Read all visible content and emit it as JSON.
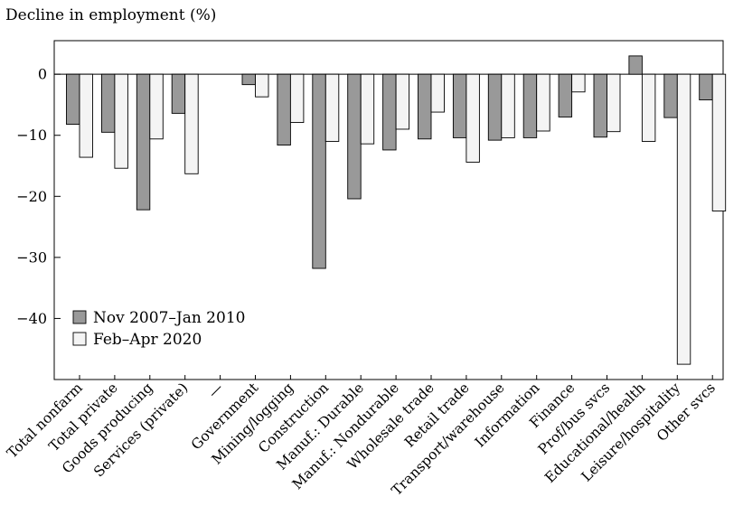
{
  "chart_data": {
    "type": "bar",
    "title": "",
    "ylabel": "Decline in employment (%)",
    "xlabel": "",
    "ylim": [
      -50,
      5.5
    ],
    "yticks": [
      0,
      -10,
      -20,
      -30,
      -40
    ],
    "ytick_labels": [
      "0",
      "−10",
      "−20",
      "−30",
      "−40"
    ],
    "grid": false,
    "legend_position": "bottom-left",
    "categories": [
      "Total nonfarm",
      "Total private",
      "Goods producing",
      "Services (private)",
      "—",
      "Government",
      "Mining/logging",
      "Construction",
      "Manuf.: Durable",
      "Manuf.: Nondurable",
      "Wholesale trade",
      "Retail trade",
      "Transport/warehouse",
      "Information",
      "Finance",
      "Prof/bus svcs",
      "Educational/health",
      "Leisure/hospitality",
      "Other svcs"
    ],
    "series": [
      {
        "name": "Nov 2007–Jan 2010",
        "color": "#999999",
        "values": [
          -8.2,
          -9.5,
          -22.2,
          -6.4,
          null,
          -1.7,
          -11.6,
          -31.8,
          -20.4,
          -12.4,
          -10.6,
          -10.4,
          -10.8,
          -10.4,
          -7.0,
          -10.3,
          3.0,
          -7.1,
          -4.2
        ]
      },
      {
        "name": "Feb–Apr 2020",
        "color": "#f4f4f4",
        "values": [
          -13.6,
          -15.4,
          -10.6,
          -16.3,
          null,
          -3.7,
          -7.9,
          -11.0,
          -11.4,
          -9.0,
          -6.2,
          -14.4,
          -10.4,
          -9.3,
          -2.9,
          -9.4,
          -11.0,
          -47.5,
          -22.4
        ]
      }
    ]
  }
}
